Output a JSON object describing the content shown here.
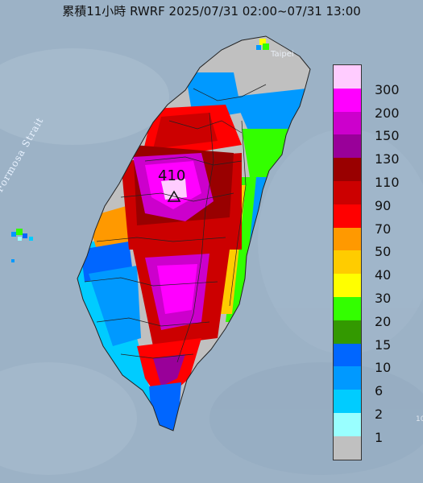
{
  "header": {
    "title": "累積11小時 RWRF 2025/07/31 02:00~07/31 13:00"
  },
  "map": {
    "strait_label": "Formosa Strait",
    "city_label": "Taipei",
    "peak_value": "410",
    "peak_marker_icon": "triangle-marker-icon",
    "map_edge_label": "10"
  },
  "legend": {
    "items": [
      {
        "label": "300",
        "color": "#ffccff"
      },
      {
        "label": "200",
        "color": "#ff00ff"
      },
      {
        "label": "150",
        "color": "#cc00cc"
      },
      {
        "label": "130",
        "color": "#990099"
      },
      {
        "label": "110",
        "color": "#990000"
      },
      {
        "label": "90",
        "color": "#cc0000"
      },
      {
        "label": "70",
        "color": "#ff0000"
      },
      {
        "label": "50",
        "color": "#ff9900"
      },
      {
        "label": "40",
        "color": "#ffcc00"
      },
      {
        "label": "30",
        "color": "#ffff00"
      },
      {
        "label": "20",
        "color": "#33ff00"
      },
      {
        "label": "15",
        "color": "#339900"
      },
      {
        "label": "10",
        "color": "#0066ff"
      },
      {
        "label": "6",
        "color": "#0099ff"
      },
      {
        "label": "2",
        "color": "#00ccff"
      },
      {
        "label": "1",
        "color": "#99ffff"
      },
      {
        "label": "",
        "color": "#c0c0c0"
      }
    ]
  }
}
